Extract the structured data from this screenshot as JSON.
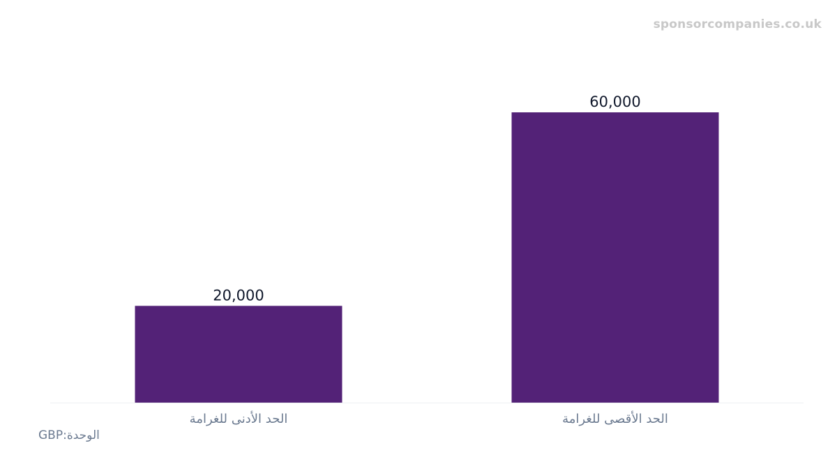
{
  "watermark": "sponsorcompanies.co.uk",
  "unit": {
    "label": "الوحدة",
    "separator": ":",
    "value": "GBP"
  },
  "colors": {
    "bar": "#532277",
    "value_label": "#0f172a",
    "tick_label": "#6b7a90",
    "baseline": "#eef0f3",
    "watermark": "#c8c8c8"
  },
  "chart_data": {
    "type": "bar",
    "categories": [
      "الحد الأدنى للغرامة",
      "الحد الأقصى للغرامة"
    ],
    "values": [
      20000,
      60000
    ],
    "value_labels": [
      "20,000",
      "60,000"
    ],
    "ylim": [
      0,
      75000
    ],
    "grid": false,
    "legend": "none"
  }
}
